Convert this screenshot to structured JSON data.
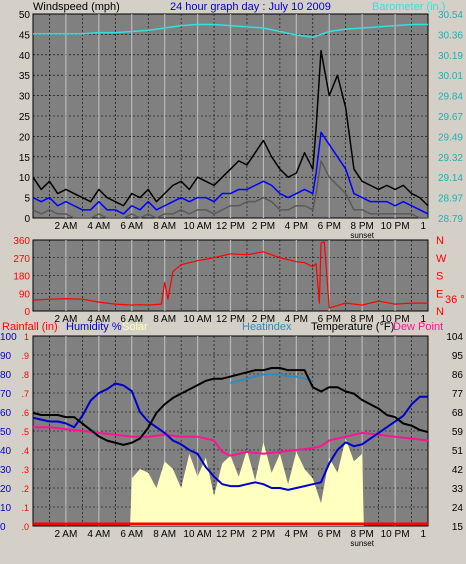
{
  "colors": {
    "background": "#d4d0c8",
    "plot_bg": "#808080",
    "grid": "#000000",
    "wind_gust": "#000000",
    "wind_avg": "#0000ff",
    "wind_low": "#5a5a5a",
    "barometer": "#33e0e0",
    "barometer_axis": "#20b0b0",
    "direction": "#ff0000",
    "rain": "#ff0000",
    "humidity": "#0000cc",
    "solar": "#ffffc0",
    "heatindex": "#2e8bc0",
    "temperature": "#000000",
    "dewpoint": "#ff1493"
  },
  "chart_data": [
    {
      "type": "line",
      "title": "24 hour graph day : July 10 2009",
      "ylabel": "Windspeed (mph)",
      "y2label": "Barometer (in.)",
      "ylim": [
        0,
        50
      ],
      "y2lim": [
        28.79,
        30.54
      ],
      "yticks": [
        "0",
        "5",
        "10",
        "15",
        "20",
        "25",
        "30",
        "35",
        "40",
        "45",
        "50"
      ],
      "y2ticks": [
        "28.79",
        "28.97",
        "29.14",
        "29.32",
        "29.49",
        "29.67",
        "29.84",
        "30.01",
        "30.19",
        "30.36",
        "30.54"
      ],
      "grid": true,
      "series": [
        {
          "name": "Barometer (in.)",
          "axis": "right",
          "x": [
            0,
            1,
            2,
            3,
            4,
            5,
            6,
            7,
            8,
            9,
            10,
            11,
            12,
            13,
            14,
            15,
            16,
            17,
            18,
            19,
            20,
            21,
            22,
            23,
            24
          ],
          "values": [
            30.37,
            30.37,
            30.37,
            30.37,
            30.38,
            30.38,
            30.39,
            30.4,
            30.42,
            30.44,
            30.45,
            30.45,
            30.44,
            30.43,
            30.42,
            30.39,
            30.36,
            30.34,
            30.39,
            30.41,
            30.42,
            30.43,
            30.44,
            30.45,
            30.45
          ]
        },
        {
          "x": [
            0,
            0.5,
            1,
            1.5,
            2,
            2.5,
            3,
            3.5,
            4,
            4.5,
            5,
            5.5,
            6,
            6.5,
            7,
            7.5,
            8,
            8.5,
            9,
            9.5,
            10,
            10.5,
            11,
            11.5,
            12,
            12.5,
            13,
            13.5,
            14,
            14.5,
            15,
            15.5,
            16,
            16.5,
            17,
            17.2,
            17.5,
            18,
            18.5,
            19,
            19.5,
            20,
            20.5,
            21,
            21.5,
            22,
            22.5,
            23,
            23.5,
            24
          ],
          "values": [
            10,
            7,
            9,
            6,
            7,
            6,
            5,
            4,
            7,
            5,
            4,
            3,
            6,
            5,
            7,
            4,
            6,
            8,
            9,
            7,
            10,
            9,
            8,
            10,
            12,
            14,
            13,
            16,
            19,
            15,
            12,
            10,
            11,
            16,
            12,
            22,
            41,
            30,
            35,
            27,
            12,
            9,
            8,
            7,
            8,
            7,
            8,
            6,
            5,
            3
          ]
        },
        {
          "x": [
            0,
            0.5,
            1,
            1.5,
            2,
            2.5,
            3,
            3.5,
            4,
            4.5,
            5,
            5.5,
            6,
            6.5,
            7,
            7.5,
            8,
            8.5,
            9,
            9.5,
            10,
            10.5,
            11,
            11.5,
            12,
            12.5,
            13,
            13.5,
            14,
            14.5,
            15,
            15.5,
            16,
            16.5,
            17,
            17.2,
            17.5,
            18,
            18.5,
            19,
            19.5,
            20,
            20.5,
            21,
            21.5,
            22,
            22.5,
            23,
            23.5,
            24
          ],
          "values": [
            5,
            4,
            5,
            3,
            4,
            3,
            2,
            2,
            4,
            2,
            2,
            1,
            3,
            2,
            4,
            2,
            3,
            4,
            5,
            4,
            5,
            5,
            4,
            6,
            6,
            7,
            7,
            8,
            9,
            8,
            6,
            5,
            6,
            7,
            6,
            11,
            21,
            18,
            15,
            12,
            6,
            5,
            4,
            4,
            4,
            3,
            4,
            3,
            2,
            1
          ]
        },
        {
          "x": [
            0,
            0.5,
            1,
            1.5,
            2,
            2.5,
            3,
            3.5,
            4,
            4.5,
            5,
            5.5,
            6,
            6.5,
            7,
            7.5,
            8,
            8.5,
            9,
            9.5,
            10,
            10.5,
            11,
            11.5,
            12,
            12.5,
            13,
            13.5,
            14,
            14.5,
            15,
            15.5,
            16,
            16.5,
            17,
            17.2,
            17.5,
            18,
            18.5,
            19,
            19.5,
            20,
            20.5,
            21,
            21.5,
            22,
            22.5,
            23,
            23.5,
            24
          ],
          "values": [
            2,
            1,
            2,
            1,
            1,
            0,
            0,
            0,
            1,
            0,
            0,
            0,
            1,
            0,
            1,
            0,
            1,
            1,
            2,
            1,
            2,
            2,
            1,
            2,
            3,
            3,
            4,
            4,
            5,
            4,
            2,
            2,
            3,
            3,
            2,
            6,
            14,
            10,
            8,
            6,
            2,
            2,
            1,
            1,
            1,
            1,
            1,
            1,
            0,
            0
          ]
        }
      ],
      "xticks": [
        "2 AM",
        "4 AM",
        "6 AM",
        "8 AM",
        "10 AM",
        "12 PM",
        "2 PM",
        "4 PM",
        "6 PM",
        "8 PM",
        "10 PM"
      ],
      "annotations": [
        "sunset"
      ]
    },
    {
      "type": "line",
      "ylim": [
        0,
        360
      ],
      "yticks": [
        "0",
        "90",
        "180",
        "270",
        "360"
      ],
      "y2ticks": [
        "N",
        "E",
        "S",
        "W",
        "N"
      ],
      "grid": true,
      "series": [
        {
          "x": [
            0,
            1,
            2,
            3,
            4,
            5,
            6,
            6.5,
            7,
            7.8,
            8,
            8.2,
            8.5,
            9,
            10,
            11,
            12,
            13,
            14,
            15,
            16,
            16.5,
            17,
            17.2,
            17.4,
            17.5,
            17.7,
            18,
            19,
            20,
            21,
            22,
            23,
            24
          ],
          "values": [
            55,
            60,
            62,
            60,
            45,
            35,
            30,
            32,
            30,
            35,
            145,
            60,
            200,
            235,
            255,
            270,
            290,
            285,
            300,
            270,
            250,
            245,
            225,
            240,
            40,
            345,
            350,
            15,
            40,
            30,
            50,
            35,
            40,
            40
          ]
        }
      ],
      "xticks": [
        "2 AM",
        "4 AM",
        "6 AM",
        "8 AM",
        "10 AM",
        "12 PM",
        "2 PM",
        "4 PM",
        "6 PM",
        "8 PM",
        "10 PM"
      ],
      "annotations": [
        "36 °"
      ]
    },
    {
      "type": "line",
      "ylim": [
        0,
        100
      ],
      "y2lim": [
        15,
        104
      ],
      "yticks_left1": [
        "0",
        "10",
        "20",
        "30",
        "40",
        "50",
        "60",
        "70",
        "80",
        "90",
        "100"
      ],
      "yticks_left2": [
        ".0",
        ".1",
        ".2",
        ".3",
        ".4",
        ".5",
        ".6",
        ".7",
        ".8",
        ".9",
        "1"
      ],
      "y2ticks": [
        "15",
        "24",
        "33",
        "42",
        "51",
        "59",
        "68",
        "77",
        "86",
        "95",
        "104"
      ],
      "legend": [
        "Rainfall (in)",
        "Humidity %",
        "Solar",
        "Heatindex",
        "Temperature (°F)",
        "Dew Point"
      ],
      "grid": true,
      "series": [
        {
          "name": "Humidity %",
          "x": [
            0,
            0.5,
            1,
            1.5,
            2,
            2.5,
            3,
            3.5,
            4,
            4.5,
            5,
            5.5,
            6,
            6.5,
            7,
            7.5,
            8,
            8.5,
            9,
            9.5,
            10,
            10.5,
            11,
            11.5,
            12,
            12.5,
            13,
            13.5,
            14,
            14.5,
            15,
            15.5,
            16,
            16.5,
            17,
            17.5,
            18,
            18.5,
            19,
            19.5,
            20,
            20.5,
            21,
            21.5,
            22,
            22.5,
            23,
            23.5,
            24
          ],
          "values": [
            57,
            56,
            55,
            55,
            54,
            52,
            58,
            66,
            70,
            72,
            75,
            74,
            71,
            60,
            55,
            52,
            49,
            45,
            43,
            40,
            38,
            31,
            26,
            22,
            21,
            21,
            22,
            23,
            22,
            20,
            20,
            19,
            20,
            21,
            22,
            23,
            33,
            40,
            44,
            42,
            43,
            46,
            49,
            52,
            55,
            58,
            64,
            68,
            68
          ]
        },
        {
          "name": "Temperature (°F)",
          "x": [
            0,
            0.5,
            1,
            1.5,
            2,
            2.5,
            3,
            3.5,
            4,
            4.5,
            5,
            5.5,
            6,
            6.5,
            7,
            7.5,
            8,
            8.5,
            9,
            9.5,
            10,
            10.5,
            11,
            11.5,
            12,
            12.5,
            13,
            13.5,
            14,
            14.5,
            15,
            15.5,
            16,
            16.5,
            17,
            17.5,
            18,
            18.5,
            19,
            19.5,
            20,
            20.5,
            21,
            21.5,
            22,
            22.5,
            23,
            23.5,
            24
          ],
          "values": [
            68,
            67,
            67,
            67,
            66,
            66,
            63,
            60,
            57,
            55,
            54,
            53,
            54,
            56,
            61,
            68,
            72,
            75,
            77,
            79,
            81,
            83,
            84,
            84,
            85,
            86,
            87,
            88,
            88,
            89,
            89,
            88,
            88,
            88,
            80,
            78,
            80,
            80,
            78,
            77,
            74,
            72,
            70,
            67,
            66,
            63,
            62,
            60,
            59
          ]
        },
        {
          "name": "Heatindex",
          "x": [
            12,
            12.5,
            13,
            13.5,
            14,
            14.5,
            15,
            15.5,
            16,
            16.5,
            17
          ],
          "values": [
            82,
            83,
            84,
            85,
            86,
            86,
            86,
            85,
            85,
            84,
            83
          ]
        },
        {
          "name": "Dew Point",
          "x": [
            0,
            1,
            2,
            3,
            4,
            5,
            6,
            7,
            8,
            9,
            10,
            11,
            11.5,
            12,
            13,
            14,
            15,
            16,
            17,
            17.5,
            18,
            19,
            20,
            21,
            22,
            23,
            24
          ],
          "values": [
            52,
            52,
            51,
            50,
            49,
            48,
            47,
            47,
            48,
            47,
            47,
            45,
            39,
            37,
            39,
            38,
            39,
            40,
            41,
            42,
            45,
            47,
            49,
            48,
            47,
            46,
            45
          ]
        },
        {
          "name": "Solar",
          "x": [
            5.9,
            6,
            6.5,
            7,
            7.5,
            8,
            8.5,
            9,
            9.5,
            10,
            10.5,
            11,
            11.5,
            12,
            12.5,
            13,
            13.5,
            14,
            14.5,
            15,
            15.5,
            16,
            16.5,
            17,
            17.5,
            18,
            18.5,
            19,
            19.5,
            20,
            20.1
          ],
          "values": [
            0,
            25,
            30,
            28,
            20,
            34,
            30,
            20,
            38,
            26,
            36,
            16,
            33,
            37,
            26,
            40,
            24,
            44,
            28,
            38,
            22,
            39,
            30,
            25,
            12,
            36,
            28,
            46,
            34,
            38,
            0
          ]
        },
        {
          "name": "Rainfall (in)",
          "x": [
            0,
            24
          ],
          "values": [
            0,
            0
          ]
        }
      ],
      "xticks": [
        "2 AM",
        "4 AM",
        "6 AM",
        "8 AM",
        "10 AM",
        "12 PM",
        "2 PM",
        "4 PM",
        "6 PM",
        "8 PM",
        "10 PM"
      ],
      "annotations": [
        "sunset"
      ]
    }
  ]
}
